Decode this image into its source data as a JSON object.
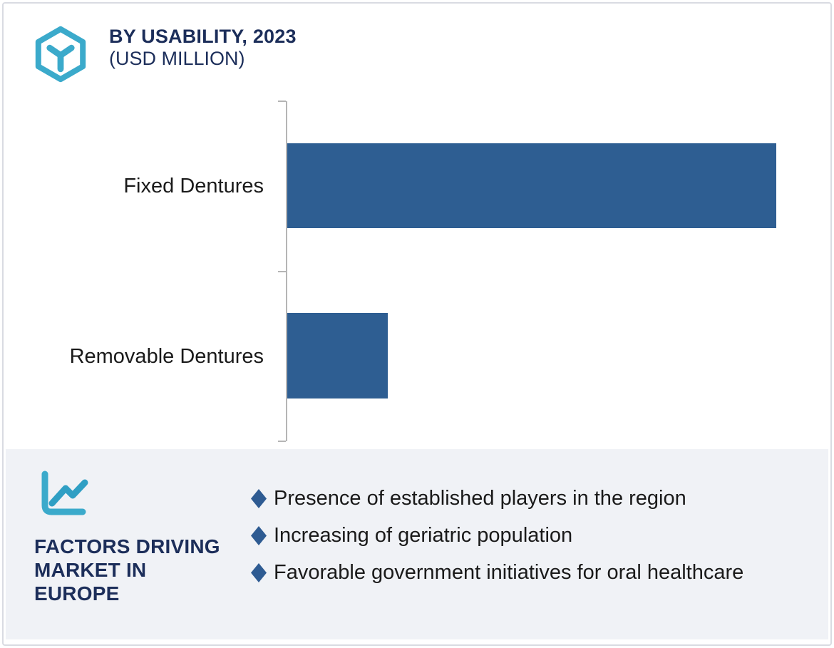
{
  "header": {
    "title": "BY USABILITY, 2023",
    "subtitle": "(USD MILLION)",
    "logo_icon": "hexagon-y-logo"
  },
  "chart_data": {
    "type": "bar",
    "orientation": "horizontal",
    "title": "BY USABILITY, 2023",
    "subtitle": "(USD MILLION)",
    "unit": "USD Million",
    "categories": [
      "Fixed Dentures",
      "Removable Dentures"
    ],
    "series": [
      {
        "name": "2023",
        "values_relative": [
          1.0,
          0.206
        ]
      }
    ],
    "value_labels_shown": false,
    "axis_tick_count": 3,
    "gridlines": false,
    "legend": "none",
    "plot_max_fraction": 0.918
  },
  "factors_panel": {
    "icon": "line-chart-icon",
    "heading_lines": [
      "FACTORS DRIVING",
      "MARKET IN",
      "EUROPE"
    ],
    "bullets": [
      "Presence of established players in the region",
      "Increasing of geriatric population",
      "Favorable government initiatives for oral healthcare"
    ]
  },
  "colors": {
    "navy": "#1C2E5A",
    "teal": "#3BAACB",
    "teal_dark": "#2F9FC4",
    "bar_blue": "#2E5E92",
    "diamond_blue": "#2E5B92",
    "panel_bg": "#F0F2F6",
    "card_border": "#D9DBE2",
    "axis_gray": "#B5B5B5",
    "text_dark": "#1A1A1A"
  }
}
